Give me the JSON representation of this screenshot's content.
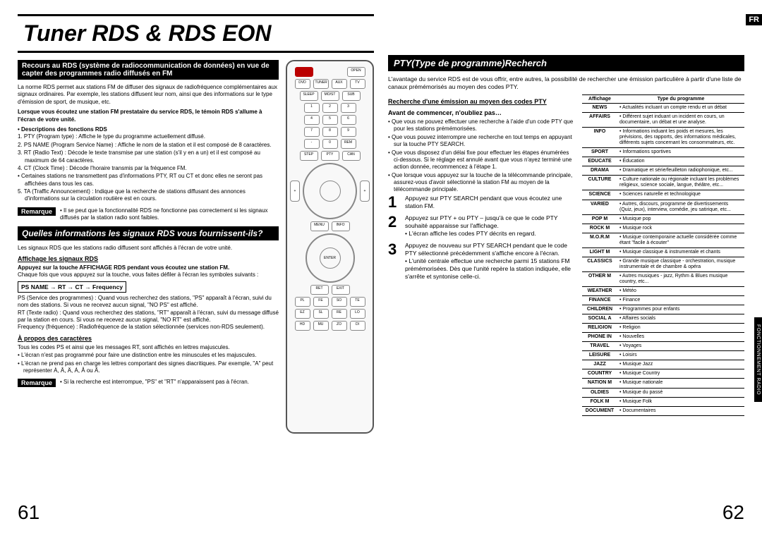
{
  "lang_tab": "FR",
  "side_tab": "FONCTIONNEMENT RADIO",
  "title": "Tuner RDS & RDS EON",
  "page_left_num": "61",
  "page_right_num": "62",
  "left": {
    "bar1": "Recours au RDS (système de radiocommunication de données) en vue de capter des programmes radio diffusés en FM",
    "intro1": "La norme RDS permet aux stations FM de diffuser des signaux de radiofréquence complémentaires aux signaux ordinaires. Par exemple, les stations diffusent leur nom, ainsi que des informations sur le type d'émission de sport, de musique, etc.",
    "intro_bold": "Lorsque vous écoutez une station FM prestataire du service RDS, le témoin RDS s'allume à l'écran de votre unité.",
    "desc_heading": "• Descriptions des fonctions RDS",
    "desc_items": [
      "1. PTY (Program type) : Affiche le type du programme actuellement diffusé.",
      "2. PS NAME (Program Service Name) : Affiche le nom de la station et il est composé de 8 caractères.",
      "3. RT (Radio Text) : Décode le texte transmise par une station (s'il y en a un) et il est composé au maximum de 64 caractères.",
      "4. CT (Clock Time) : Décode l'horaire transmis par la fréquence FM.",
      "• Certaines stations ne transmettent pas d'informations PTY, RT ou CT et donc elles ne seront pas affichées dans tous les cas.",
      "5. TA (Traffic Announcement) : Indique que la recherche de stations diffusant des annonces d'informations sur la circulation routière est en cours."
    ],
    "remark1_label": "Remarque",
    "remark1_text": "• Il se peut que la fonctionnalité RDS ne fonctionne pas correctement si les signaux diffusés par la station radio sont faibles.",
    "bar2": "Quelles informations les signaux RDS vous fournissent-ils?",
    "sec2_intro": "Les signaux RDS que les stations radio diffusent sont affichés à l'écran de votre unité.",
    "aff_heading": "Affichage les signaux RDS",
    "aff_text1": "Appuyez sur la touche AFFICHAGE RDS pendant vous écoutez une station FM.",
    "aff_text2": "Chaque fois que vous appuyez sur la touche, vous faites défiler à l'écran les symboles suivants :",
    "flow": "PS NAME → RT → CT → Frequency",
    "ps_desc": "PS (Service des programmes) : Quand vous recherchez des stations, \"PS\" apparaît à l'écran, suivi du nom des stations. Si vous ne recevez aucun signal, \"NO PS\" est affiché.",
    "rt_desc": "RT (Texte radio) : Quand vous recherchez des stations, \"RT\" apparaît à l'écran, suivi du message diffusé par la station en cours. Si vous ne recevez aucun signal, \"NO RT\" est affiché.",
    "freq_desc": "Frequency (fréquence) : Radiofréquence de la station sélectionnée (services non-RDS seulement).",
    "apropos_heading": "À propos des caractères",
    "apropos_items": [
      "Tous les codes PS et ainsi que les messages RT, sont affichés en lettres majuscules.",
      "• L'écran n'est pas programmé pour faire une distinction entre les minuscules et les majuscules.",
      "• L'écran ne prend pas en charge les lettres comportant des signes diacritiques. Par exemple, \"A\" peut représenter À, Â, Ä, Á, Å ou Ã."
    ],
    "remark2_label": "Remarque",
    "remark2_text": "• Si la recherche est interrompue, \"PS\" et \"RT\" n'apparaissent pas à l'écran."
  },
  "right": {
    "bar": "PTY(Type de programme)Recherch",
    "intro": "L'avantage du service RDS est de vous offrir, entre autres, la possibilité de rechercher une émission particulière à partir d'une liste de canaux prémémorisés au moyen des codes PTY.",
    "sub1": "Recherche d'une émission au moyen des codes PTY",
    "sub2": "Avant de commencer, n'oubliez pas…",
    "bullets": [
      "Que vous ne pouvez effectuer une recherche à l'aide d'un code PTY que pour les stations prémémorisées.",
      "Que vous pouvez interrompre une recherche en tout temps en appuyant sur la touche PTY SEARCH.",
      "Que vous disposez d'un délai fixe pour effectuer les étapes énumérées ci-dessous. Si le réglage est annulé avant que vous n'ayez terminé une action donnée, recommencez à l'étape 1.",
      "Que lorsque vous appuyez sur la touche de la télécommande principale, assurez-vous d'avoir sélectionné la station FM au moyen de la télécommande principale."
    ],
    "steps": [
      {
        "n": "1",
        "text": "Appuyez sur PTY SEARCH pendant que vous écoutez une station FM."
      },
      {
        "n": "2",
        "text": "Appuyez sur PTY + ou PTY – jusqu'à ce que le code PTY souhaité apparaisse sur l'affichage.",
        "sub": "• L'écran affiche les codes PTY décrits en regard."
      },
      {
        "n": "3",
        "text": "Appuyez de nouveau sur PTY SEARCH pendant que le code PTY sélectionné précédemment s'affiche encore à l'écran.",
        "sub": "• L'unité centrale effectue une recherche parmi 15 stations FM prémémorisées. Dès que l'unité repère la station indiquée, elle s'arrête et syntonise celle-ci."
      }
    ],
    "table_header_left": "Affichage",
    "table_header_right": "Type du programme",
    "table": [
      [
        "NEWS",
        "• Actualités incluant un compte rendu et un débat"
      ],
      [
        "AFFAIRS",
        "• Différent sujet induant un incident en cours, un documentaire, un débat et une analyse."
      ],
      [
        "INFO",
        "• Informations induant les poids et mesures, les prévisions, des rapports, des informations médicales, différents sujets concernant les consommateurs, etc."
      ],
      [
        "SPORT",
        "• Informations sportives"
      ],
      [
        "EDUCATE",
        "• Éducation"
      ],
      [
        "DRAMA",
        "• Dramatique et série/feuilleton radiophonique, etc..."
      ],
      [
        "CULTURE",
        "• Culture nationale ou régionale incluant les problèmes religieux, science sociale, langue, théâtre, etc..."
      ],
      [
        "SCIENCE",
        "• Sciences naturelle et technologique"
      ],
      [
        "VARIED",
        "• Autres, discours, programme de divertissements (Quiz, jeux), interview, comédie, jeu satirique, etc..."
      ],
      [
        "POP M",
        "• Musique pop"
      ],
      [
        "ROCK M",
        "• Musique rock"
      ],
      [
        "M.O.R.M",
        "• Musique contemporaine actuelle considérée comme étant \"facile à écouter\""
      ],
      [
        "LIGHT M",
        "• Musique classique & instrumentale et chants"
      ],
      [
        "CLASSICS",
        "• Grande musique classique - orchestration, musique instrumentale et de chambre & opéra"
      ],
      [
        "OTHER M",
        "• Autres musiques - jazz, Rythm & Blues musique country, etc..."
      ],
      [
        "WEATHER",
        "• Météo"
      ],
      [
        "FINANCE",
        "• Finance"
      ],
      [
        "CHILDREN",
        "• Programmes pour enfants"
      ],
      [
        "SOCIAL A",
        "• Affaires socials"
      ],
      [
        "RELIGION",
        "• Religion"
      ],
      [
        "PHONE IN",
        "• Nouvelles"
      ],
      [
        "TRAVEL",
        "• Voyages"
      ],
      [
        "LEISURE",
        "• Loisirs"
      ],
      [
        "JAZZ",
        "• Musique Jazz"
      ],
      [
        "COUNTRY",
        "• Musique Country"
      ],
      [
        "NATION M",
        "• Musique nationale"
      ],
      [
        "OLDIES",
        "• Musique du passé"
      ],
      [
        "FOLK M",
        "• Musique Folk"
      ],
      [
        "DOCUMENT",
        "• Documentaires"
      ]
    ]
  }
}
